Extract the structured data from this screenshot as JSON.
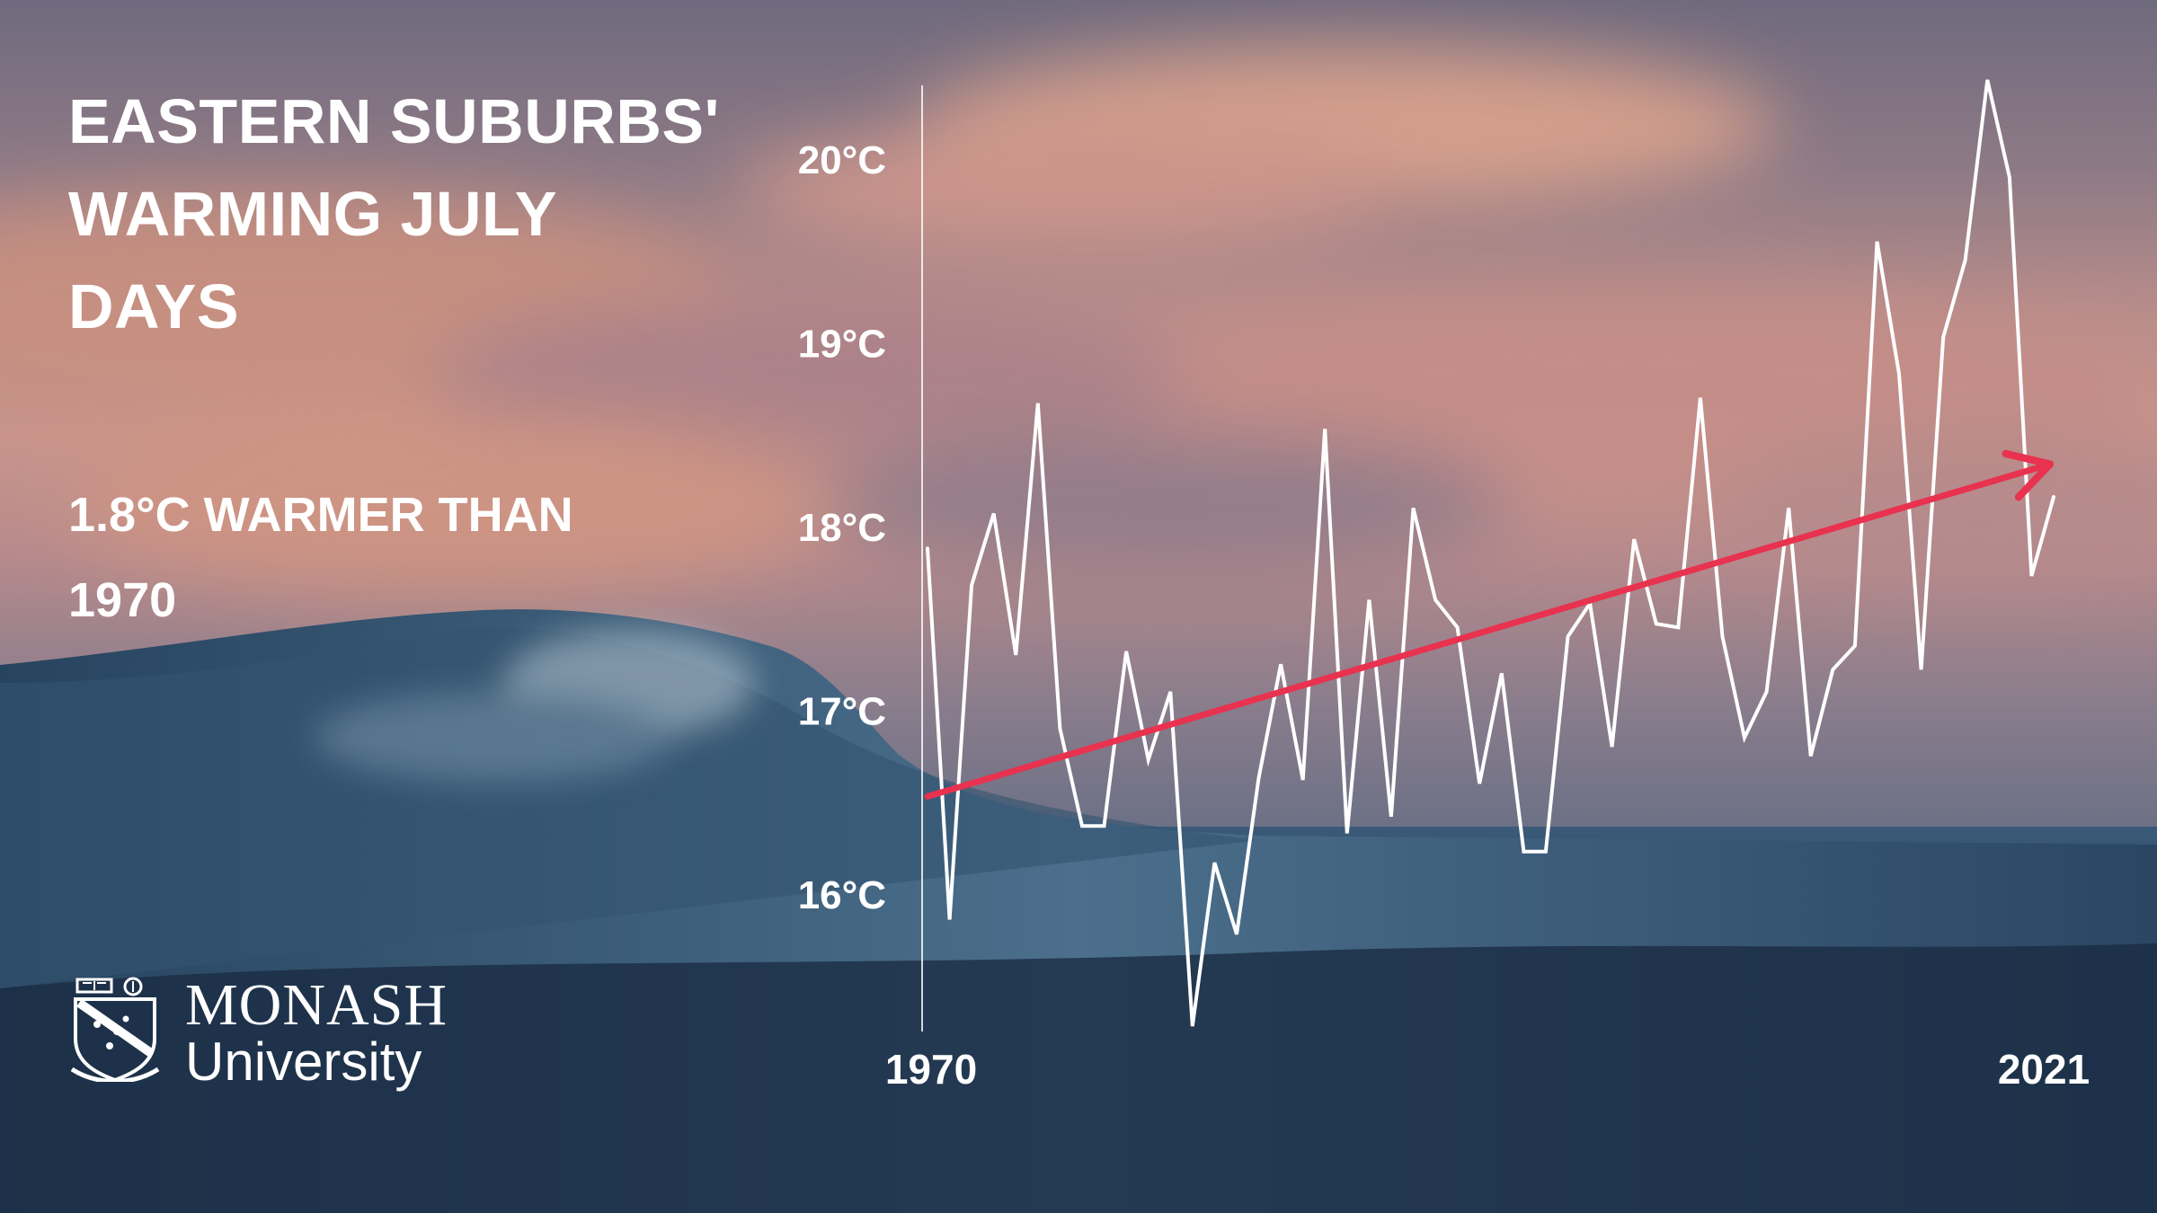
{
  "title": [
    "EASTERN SUBURBS'",
    "WARMING JULY",
    "DAYS"
  ],
  "subtitle": [
    "1.8°C WARMER THAN",
    "1970"
  ],
  "logo": {
    "line1": "MONASH",
    "line2": "University"
  },
  "colors": {
    "line": "#ffffff",
    "trend": "#e8324f",
    "text": "#ffffff"
  },
  "chart_data": {
    "type": "line",
    "x_start": 1970,
    "x_end": 2021,
    "x_tick_labels": [
      "1970",
      "2021"
    ],
    "y_ticks": [
      16,
      17,
      18,
      19,
      20
    ],
    "y_tick_labels": [
      "16°C",
      "17°C",
      "18°C",
      "19°C",
      "20°C"
    ],
    "ylim": [
      15.3,
      20.4
    ],
    "series": [
      {
        "values": [
          17.88,
          15.86,
          17.68,
          18.07,
          17.3,
          18.67,
          16.9,
          16.37,
          16.37,
          17.32,
          16.73,
          17.1,
          15.28,
          16.17,
          15.78,
          16.63,
          17.25,
          16.62,
          18.53,
          16.33,
          17.6,
          16.42,
          18.1,
          17.6,
          17.45,
          16.6,
          17.2,
          16.23,
          16.23,
          17.4,
          17.58,
          16.8,
          17.93,
          17.47,
          17.45,
          18.7,
          17.4,
          16.85,
          17.1,
          18.1,
          16.75,
          17.22,
          17.35,
          19.55,
          18.83,
          17.22,
          19.03,
          19.45,
          20.43,
          19.9,
          17.73,
          18.16
        ]
      }
    ],
    "trend": {
      "start_year": 1970,
      "start_value": 16.53,
      "end_year": 2021,
      "end_value": 18.33
    }
  }
}
